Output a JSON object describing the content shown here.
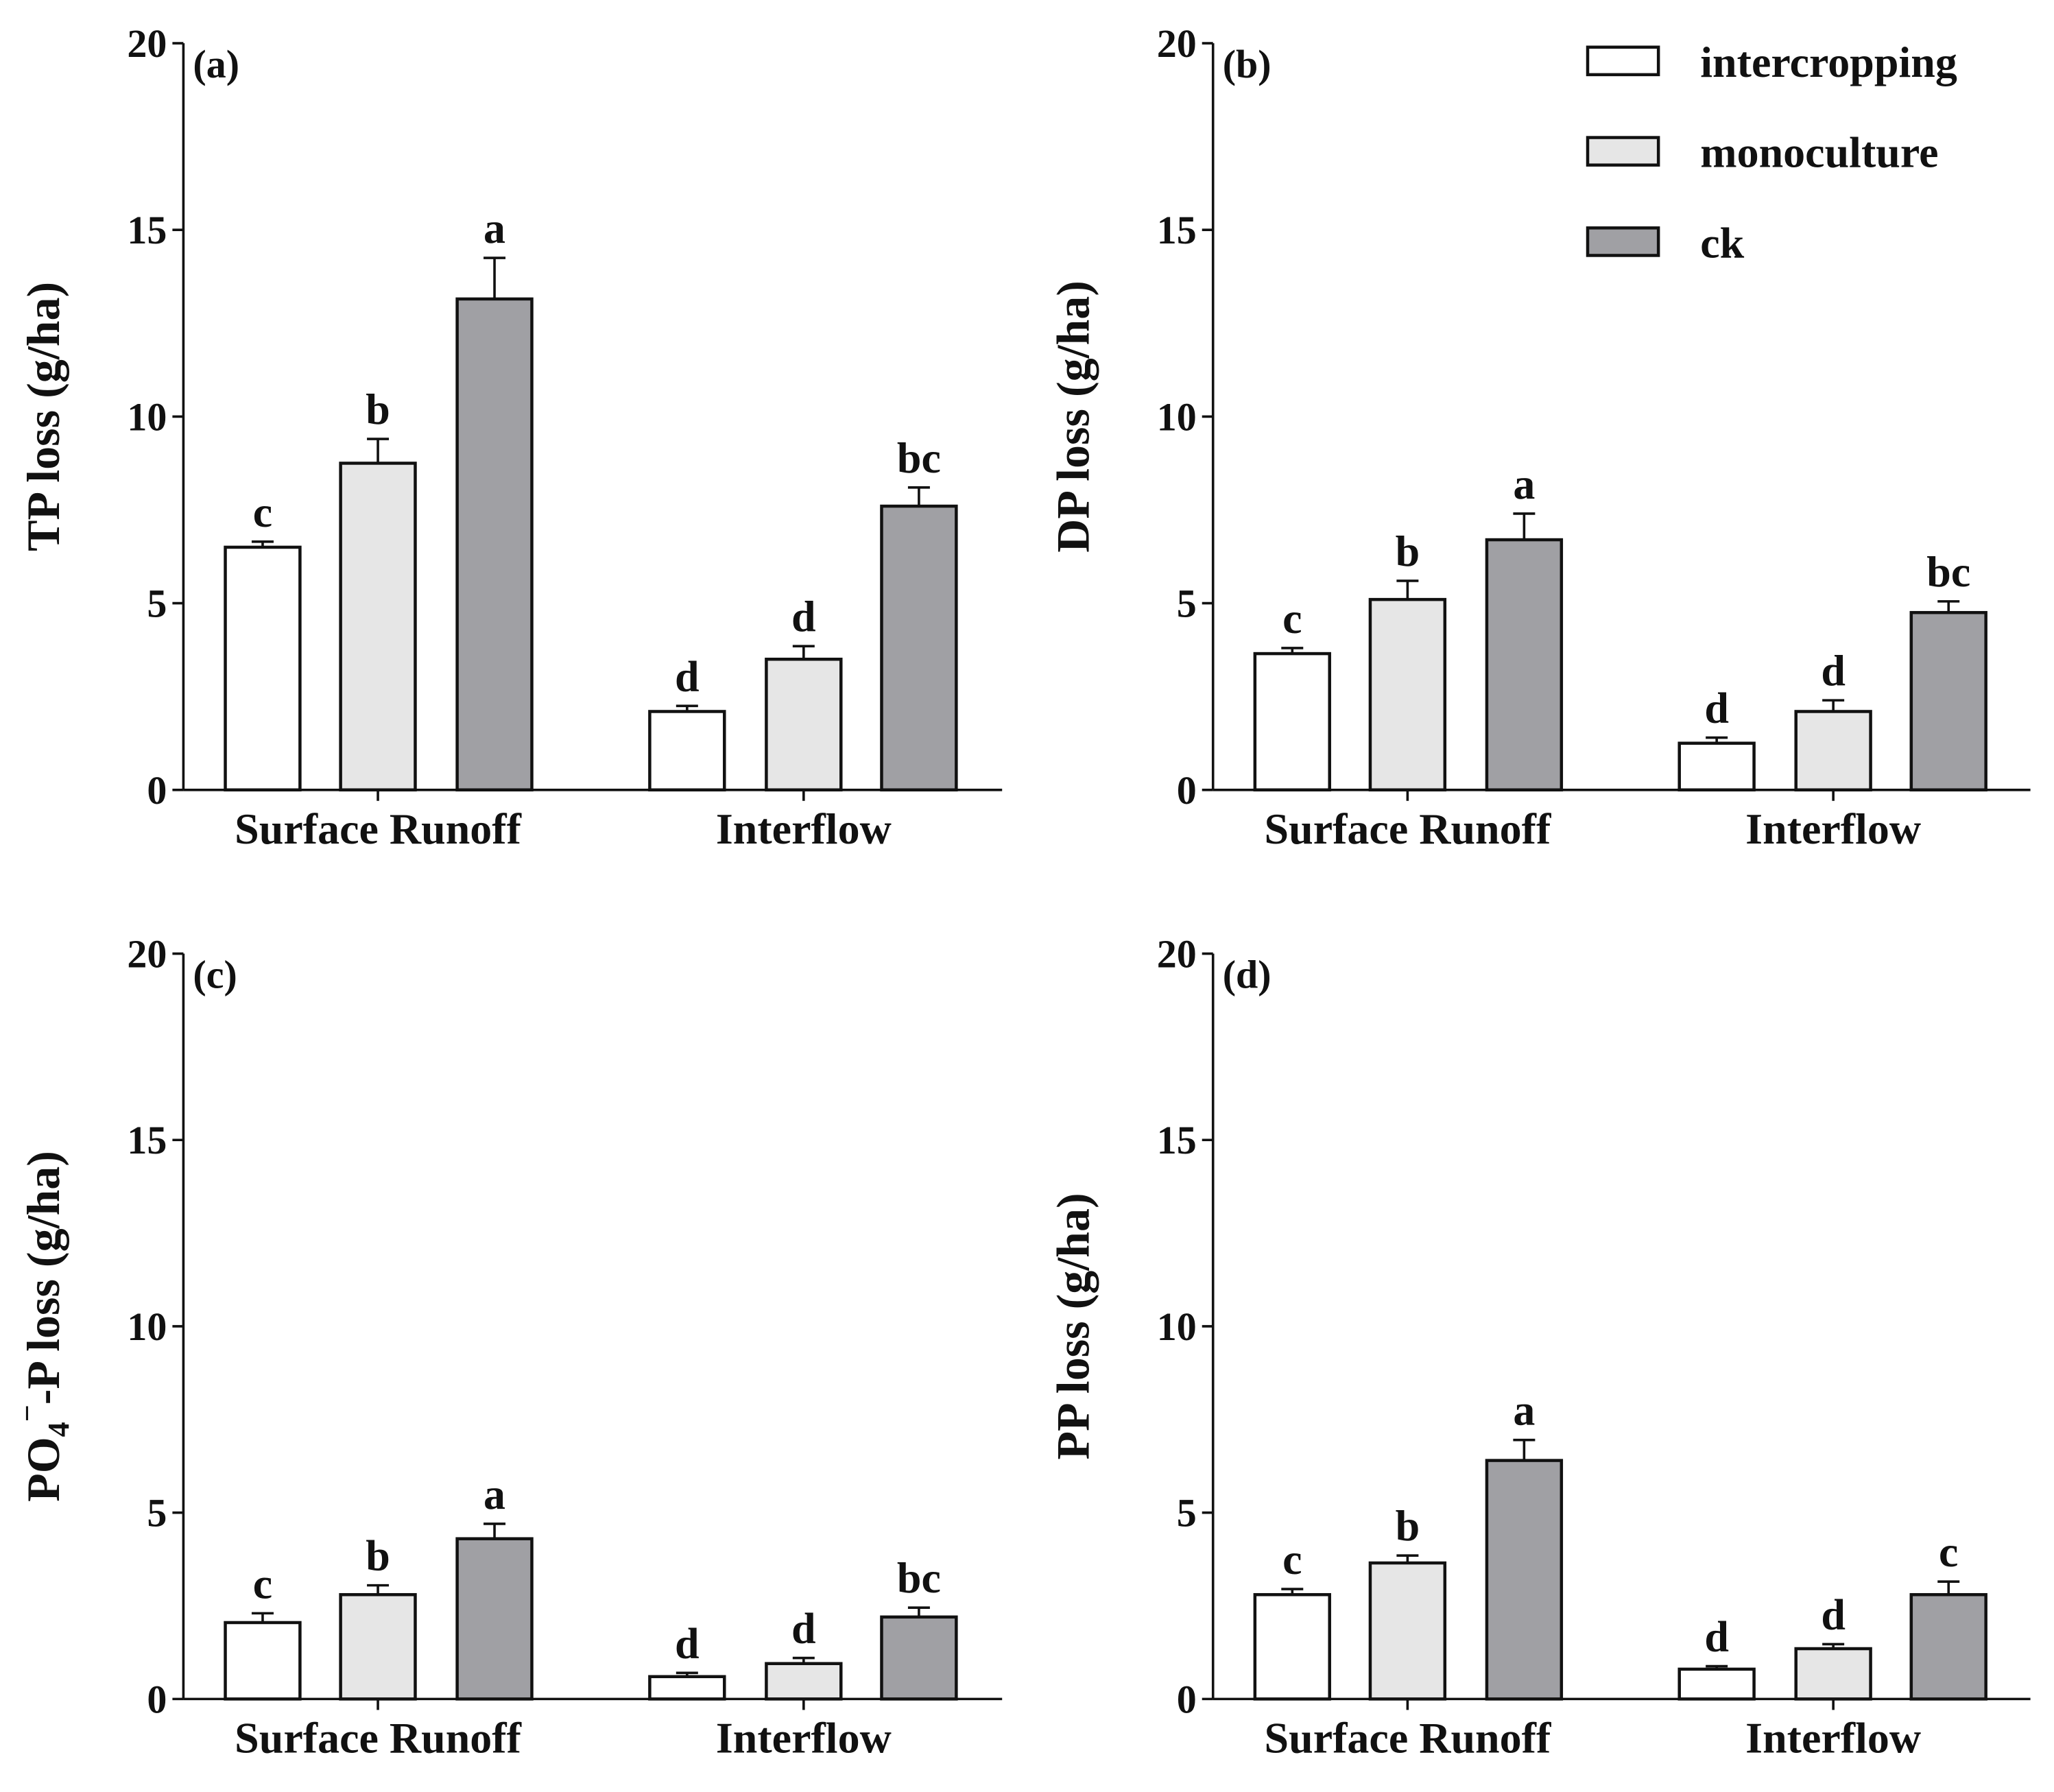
{
  "legend": {
    "entries": [
      {
        "label": "intercropping",
        "color": "#ffffff"
      },
      {
        "label": "monoculture",
        "color": "#e6e6e6"
      },
      {
        "label": "ck",
        "color": "#a0a0a4"
      }
    ],
    "placement": "top-right of panel (b)"
  },
  "chart_data": [
    {
      "type": "bar",
      "panel_label": "(a)",
      "ylabel_main": "TP loss (g/ha)",
      "categories": [
        "Surface Runoff",
        "Interflow"
      ],
      "ylim": [
        0,
        20
      ],
      "yticks": [
        "0",
        "5",
        "10",
        "15",
        "20"
      ],
      "series": [
        {
          "name": "intercropping",
          "values": [
            6.5,
            2.1
          ],
          "errors": [
            0.15,
            0.15
          ],
          "letters": [
            "c",
            "d"
          ]
        },
        {
          "name": "monoculture",
          "values": [
            8.75,
            3.5
          ],
          "errors": [
            0.65,
            0.35
          ],
          "letters": [
            "b",
            "d"
          ]
        },
        {
          "name": "ck",
          "values": [
            13.15,
            7.6
          ],
          "errors": [
            1.1,
            0.5
          ],
          "letters": [
            "a",
            "bc"
          ]
        }
      ]
    },
    {
      "type": "bar",
      "panel_label": "(b)",
      "ylabel_main": "DP loss (g/ha)",
      "categories": [
        "Surface Runoff",
        "Interflow"
      ],
      "ylim": [
        0,
        20
      ],
      "yticks": [
        "0",
        "5",
        "10",
        "15",
        "20"
      ],
      "series": [
        {
          "name": "intercropping",
          "values": [
            3.65,
            1.25
          ],
          "errors": [
            0.15,
            0.15
          ],
          "letters": [
            "c",
            "d"
          ]
        },
        {
          "name": "monoculture",
          "values": [
            5.1,
            2.1
          ],
          "errors": [
            0.5,
            0.3
          ],
          "letters": [
            "b",
            "d"
          ]
        },
        {
          "name": "ck",
          "values": [
            6.7,
            4.75
          ],
          "errors": [
            0.7,
            0.3
          ],
          "letters": [
            "a",
            "bc"
          ]
        }
      ]
    },
    {
      "type": "bar",
      "panel_label": "(c)",
      "ylabel_main": "PO",
      "ylabel_sub": "4",
      "ylabel_sup": "−",
      "ylabel_rest": "-P loss (g/ha)",
      "categories": [
        "Surface Runoff",
        "Interflow"
      ],
      "ylim": [
        0,
        20
      ],
      "yticks": [
        "0",
        "5",
        "10",
        "15",
        "20"
      ],
      "series": [
        {
          "name": "intercropping",
          "values": [
            2.05,
            0.6
          ],
          "errors": [
            0.25,
            0.1
          ],
          "letters": [
            "c",
            "d"
          ]
        },
        {
          "name": "monoculture",
          "values": [
            2.8,
            0.95
          ],
          "errors": [
            0.25,
            0.15
          ],
          "letters": [
            "b",
            "d"
          ]
        },
        {
          "name": "ck",
          "values": [
            4.3,
            2.2
          ],
          "errors": [
            0.4,
            0.25
          ],
          "letters": [
            "a",
            "bc"
          ]
        }
      ]
    },
    {
      "type": "bar",
      "panel_label": "(d)",
      "ylabel_main": "PP loss (g/ha)",
      "categories": [
        "Surface Runoff",
        "Interflow"
      ],
      "ylim": [
        0,
        20
      ],
      "yticks": [
        "0",
        "5",
        "10",
        "15",
        "20"
      ],
      "series": [
        {
          "name": "intercropping",
          "values": [
            2.8,
            0.8
          ],
          "errors": [
            0.15,
            0.08
          ],
          "letters": [
            "c",
            "d"
          ]
        },
        {
          "name": "monoculture",
          "values": [
            3.65,
            1.35
          ],
          "errors": [
            0.2,
            0.12
          ],
          "letters": [
            "b",
            "d"
          ]
        },
        {
          "name": "ck",
          "values": [
            6.4,
            2.8
          ],
          "errors": [
            0.55,
            0.35
          ],
          "letters": [
            "a",
            "c"
          ]
        }
      ]
    }
  ]
}
